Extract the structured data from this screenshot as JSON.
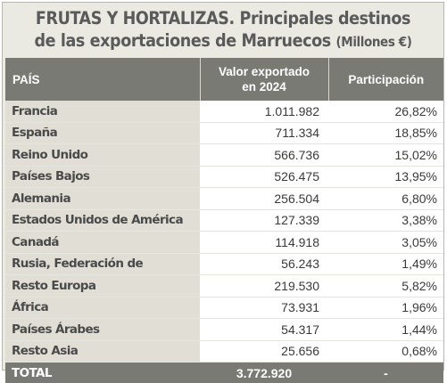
{
  "title": {
    "line1": "FRUTAS Y HORTALIZAS. Principales destinos",
    "line2_main": "de las exportaciones de Marruecos",
    "line2_unit": "(Millones €)"
  },
  "table": {
    "headers": {
      "pais": "PAÍS",
      "valor_line1": "Valor exportado",
      "valor_line2": "en 2024",
      "participacion": "Participación"
    },
    "rows": [
      {
        "pais": "Francia",
        "valor": "1.011.982",
        "participacion": "26,82%"
      },
      {
        "pais": "España",
        "valor": "711.334",
        "participacion": "18,85%"
      },
      {
        "pais": "Reino Unido",
        "valor": "566.736",
        "participacion": "15,02%"
      },
      {
        "pais": "Países Bajos",
        "valor": "526.475",
        "participacion": "13,95%"
      },
      {
        "pais": "Alemania",
        "valor": "256.504",
        "participacion": "6,80%"
      },
      {
        "pais": "Estados Unidos de América",
        "valor": "127.339",
        "participacion": "3,38%"
      },
      {
        "pais": "Canadá",
        "valor": "114.918",
        "participacion": "3,05%"
      },
      {
        "pais": "Rusia, Federación de",
        "valor": "56.243",
        "participacion": "1,49%"
      },
      {
        "pais": "Resto Europa",
        "valor": "219.530",
        "participacion": "5,82%"
      },
      {
        "pais": "África",
        "valor": "73.931",
        "participacion": "1,96%"
      },
      {
        "pais": "Países Árabes",
        "valor": "54.317",
        "participacion": "1,44%"
      },
      {
        "pais": "Resto Asia",
        "valor": "25.656",
        "participacion": "0,68%"
      }
    ],
    "total": {
      "pais": "TOTAL",
      "valor": "3.772.920",
      "participacion": "-"
    }
  },
  "colors": {
    "header_bg": "#7a7a75",
    "panel_bg": "#eae9e2",
    "country_cell_bg": "#e0ded5",
    "title_text": "#5a5a5a"
  }
}
